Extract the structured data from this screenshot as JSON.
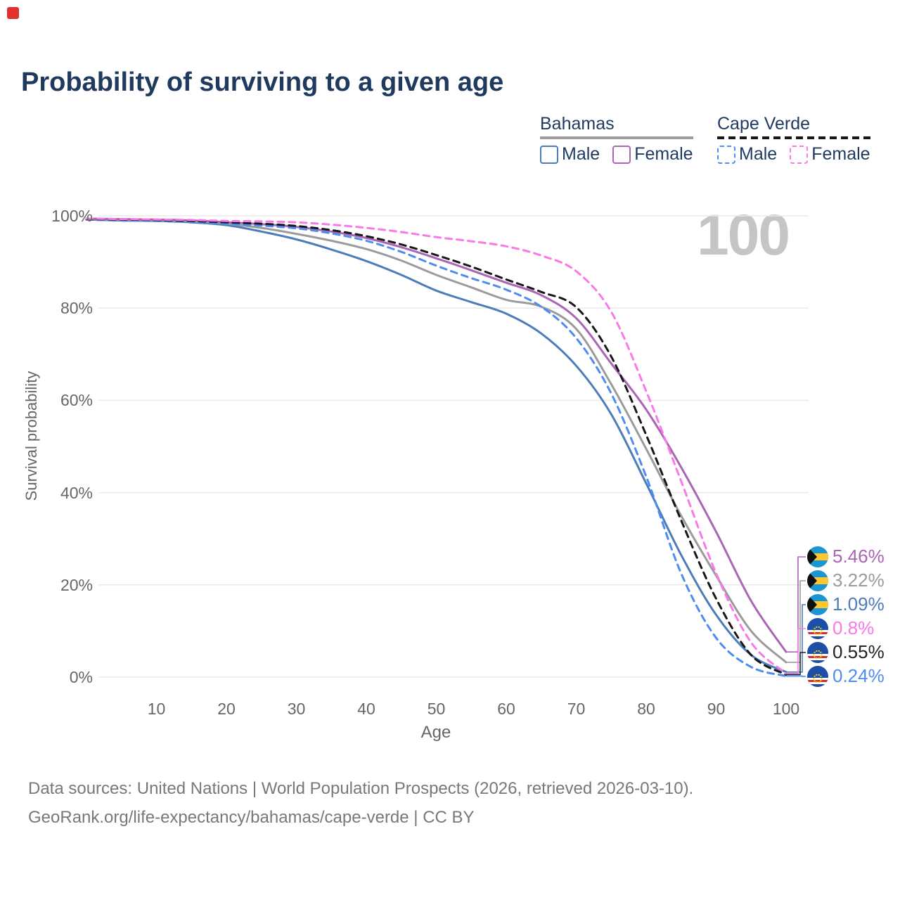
{
  "title": "Probability of surviving to a given age",
  "watermark": {
    "text": "100"
  },
  "colors": {
    "title": "#1f3a5e",
    "axis": "#666666",
    "grid": "#eaeaea",
    "watermark": "#c5c5c5",
    "footer": "#787878",
    "logo": "#e0322c"
  },
  "legend": {
    "groups": [
      {
        "label": "Bahamas",
        "underline_style": "solid",
        "underline_color": "#9e9e9e",
        "items": [
          {
            "label": "Male",
            "swatch_color": "#4d7cba",
            "dashed": false
          },
          {
            "label": "Female",
            "swatch_color": "#aa65b5",
            "dashed": false
          }
        ]
      },
      {
        "label": "Cape Verde",
        "underline_style": "dashed",
        "underline_color": "#171717",
        "items": [
          {
            "label": "Male",
            "swatch_color": "#4e8cf0",
            "dashed": true
          },
          {
            "label": "Female",
            "swatch_color": "#fa78e8",
            "dashed": true
          }
        ]
      }
    ]
  },
  "chart_data": {
    "type": "line",
    "title": "Probability of surviving to a given age",
    "xlabel": "Age",
    "ylabel": "Survival probability",
    "xlim": [
      0,
      100
    ],
    "ylim": [
      0,
      100
    ],
    "x_ticks": [
      10,
      20,
      30,
      40,
      50,
      60,
      70,
      80,
      90,
      100
    ],
    "y_ticks": [
      0,
      20,
      40,
      60,
      80,
      100
    ],
    "grid": "horizontal-only",
    "legend_position": "top-right",
    "series": [
      {
        "name": "Bahamas — Male",
        "country": "Bahamas",
        "sex": "Male",
        "style": "solid",
        "color": "#4d7cba",
        "end_value_pct": 1.09,
        "points": [
          [
            0,
            99.2
          ],
          [
            5,
            99.0
          ],
          [
            10,
            98.9
          ],
          [
            15,
            98.6
          ],
          [
            20,
            98.0
          ],
          [
            25,
            96.6
          ],
          [
            30,
            94.9
          ],
          [
            35,
            92.7
          ],
          [
            40,
            90.2
          ],
          [
            45,
            87.2
          ],
          [
            50,
            83.8
          ],
          [
            55,
            81.3
          ],
          [
            60,
            78.8
          ],
          [
            65,
            74.5
          ],
          [
            70,
            67.5
          ],
          [
            75,
            57.0
          ],
          [
            80,
            42.0
          ],
          [
            85,
            26.5
          ],
          [
            90,
            13.5
          ],
          [
            95,
            4.8
          ],
          [
            100,
            1.09
          ]
        ]
      },
      {
        "name": "Bahamas — Both sexes",
        "country": "Bahamas",
        "sex": "Both",
        "style": "solid",
        "color": "#9b9b9b",
        "end_value_pct": 3.22,
        "points": [
          [
            0,
            99.3
          ],
          [
            5,
            99.1
          ],
          [
            10,
            99.0
          ],
          [
            15,
            98.8
          ],
          [
            20,
            98.3
          ],
          [
            25,
            97.4
          ],
          [
            30,
            96.1
          ],
          [
            35,
            94.6
          ],
          [
            40,
            92.8
          ],
          [
            45,
            90.3
          ],
          [
            50,
            87.2
          ],
          [
            55,
            84.5
          ],
          [
            60,
            81.8
          ],
          [
            65,
            80.3
          ],
          [
            70,
            75.5
          ],
          [
            75,
            63.5
          ],
          [
            80,
            49.5
          ],
          [
            85,
            35.0
          ],
          [
            90,
            22.0
          ],
          [
            95,
            10.0
          ],
          [
            100,
            3.22
          ]
        ]
      },
      {
        "name": "Bahamas — Female",
        "country": "Bahamas",
        "sex": "Female",
        "style": "solid",
        "color": "#aa65b5",
        "end_value_pct": 5.46,
        "points": [
          [
            0,
            99.4
          ],
          [
            5,
            99.3
          ],
          [
            10,
            99.2
          ],
          [
            15,
            99.0
          ],
          [
            20,
            98.6
          ],
          [
            25,
            98.2
          ],
          [
            30,
            97.6
          ],
          [
            35,
            96.6
          ],
          [
            40,
            95.2
          ],
          [
            45,
            93.2
          ],
          [
            50,
            90.8
          ],
          [
            55,
            88.2
          ],
          [
            60,
            85.5
          ],
          [
            65,
            82.8
          ],
          [
            70,
            77.8
          ],
          [
            75,
            68.0
          ],
          [
            80,
            58.0
          ],
          [
            85,
            45.5
          ],
          [
            90,
            31.5
          ],
          [
            95,
            16.5
          ],
          [
            100,
            5.46
          ]
        ]
      },
      {
        "name": "Cape Verde — Male",
        "country": "Cape Verde",
        "sex": "Male",
        "style": "dashed",
        "color": "#4e8cf0",
        "end_value_pct": 0.24,
        "points": [
          [
            0,
            99.2
          ],
          [
            5,
            99.0
          ],
          [
            10,
            98.9
          ],
          [
            15,
            98.7
          ],
          [
            20,
            98.3
          ],
          [
            25,
            97.9
          ],
          [
            30,
            97.3
          ],
          [
            35,
            96.2
          ],
          [
            40,
            94.6
          ],
          [
            45,
            92.2
          ],
          [
            50,
            89.2
          ],
          [
            55,
            86.5
          ],
          [
            60,
            84.0
          ],
          [
            65,
            80.3
          ],
          [
            70,
            73.5
          ],
          [
            75,
            61.5
          ],
          [
            80,
            43.5
          ],
          [
            85,
            22.5
          ],
          [
            90,
            8.5
          ],
          [
            95,
            2.2
          ],
          [
            100,
            0.24
          ]
        ]
      },
      {
        "name": "Cape Verde — Both sexes",
        "country": "Cape Verde",
        "sex": "Both",
        "style": "dashed",
        "color": "#171717",
        "end_value_pct": 0.55,
        "points": [
          [
            0,
            99.3
          ],
          [
            5,
            99.2
          ],
          [
            10,
            99.1
          ],
          [
            15,
            98.9
          ],
          [
            20,
            98.6
          ],
          [
            25,
            98.3
          ],
          [
            30,
            97.8
          ],
          [
            35,
            96.9
          ],
          [
            40,
            95.6
          ],
          [
            45,
            93.8
          ],
          [
            50,
            91.5
          ],
          [
            55,
            89.0
          ],
          [
            60,
            86.2
          ],
          [
            65,
            83.5
          ],
          [
            70,
            80.2
          ],
          [
            75,
            69.5
          ],
          [
            80,
            52.5
          ],
          [
            85,
            34.0
          ],
          [
            90,
            17.0
          ],
          [
            95,
            4.8
          ],
          [
            100,
            0.55
          ]
        ]
      },
      {
        "name": "Cape Verde — Female",
        "country": "Cape Verde",
        "sex": "Female",
        "style": "dashed",
        "color": "#fa78e8",
        "end_value_pct": 0.8,
        "points": [
          [
            0,
            99.4
          ],
          [
            5,
            99.3
          ],
          [
            10,
            99.2
          ],
          [
            15,
            99.1
          ],
          [
            20,
            98.9
          ],
          [
            25,
            98.8
          ],
          [
            30,
            98.6
          ],
          [
            35,
            98.1
          ],
          [
            40,
            97.4
          ],
          [
            45,
            96.5
          ],
          [
            50,
            95.4
          ],
          [
            55,
            94.5
          ],
          [
            60,
            93.4
          ],
          [
            65,
            91.4
          ],
          [
            70,
            88.0
          ],
          [
            75,
            79.2
          ],
          [
            80,
            62.0
          ],
          [
            85,
            42.5
          ],
          [
            90,
            22.5
          ],
          [
            95,
            7.5
          ],
          [
            100,
            0.8
          ]
        ]
      }
    ]
  },
  "end_labels": [
    {
      "text": "5.46%",
      "value": 5.46,
      "color": "#aa65b5",
      "flag": "bahamas"
    },
    {
      "text": "3.22%",
      "value": 3.22,
      "color": "#9b9b9b",
      "flag": "bahamas"
    },
    {
      "text": "1.09%",
      "value": 1.09,
      "color": "#4d7cba",
      "flag": "bahamas"
    },
    {
      "text": "0.8%",
      "value": 0.8,
      "color": "#fa78e8",
      "flag": "cape-verde"
    },
    {
      "text": "0.55%",
      "value": 0.55,
      "color": "#222222",
      "flag": "cape-verde"
    },
    {
      "text": "0.24%",
      "value": 0.24,
      "color": "#4e8cf0",
      "flag": "cape-verde"
    }
  ],
  "flags": {
    "bahamas": {
      "aqua": "#1a96d4",
      "gold": "#ffc62e",
      "black": "#101010"
    },
    "cape_verde": {
      "blue": "#1d4fa8",
      "red": "#d62c2c",
      "white": "#ffffff",
      "star": "#ffd500"
    }
  },
  "axes": {
    "x_title": "Age",
    "y_title": "Survival probability",
    "y_suffix": "%"
  },
  "footer": {
    "line1": "Data sources: United Nations | World Population Prospects (2026, retrieved 2026-03-10).",
    "line2": "GeoRank.org/life-expectancy/bahamas/cape-verde | CC BY"
  }
}
